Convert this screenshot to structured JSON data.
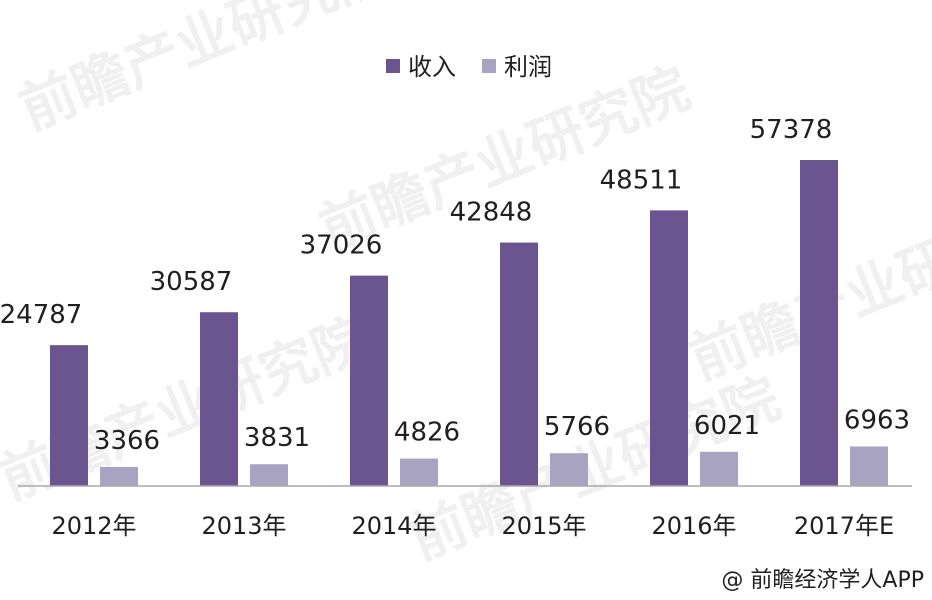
{
  "chart_data": {
    "type": "bar",
    "categories": [
      "2012年",
      "2013年",
      "2014年",
      "2015年",
      "2016年",
      "2017年E"
    ],
    "series": [
      {
        "name": "收入",
        "values": [
          24787,
          30587,
          37026,
          42848,
          48511,
          57378
        ],
        "color": "#6b5591"
      },
      {
        "name": "利润",
        "values": [
          3366,
          3831,
          4826,
          5766,
          6021,
          6963
        ],
        "color": "#a9a3c2"
      }
    ],
    "title": "",
    "xlabel": "",
    "ylabel": "",
    "ylim": [
      0,
      57378
    ],
    "grid": false,
    "legend_position": "top-center",
    "data_labels": true
  },
  "credit": "@ 前瞻经济学人APP",
  "watermark": "前瞻产业研究院"
}
